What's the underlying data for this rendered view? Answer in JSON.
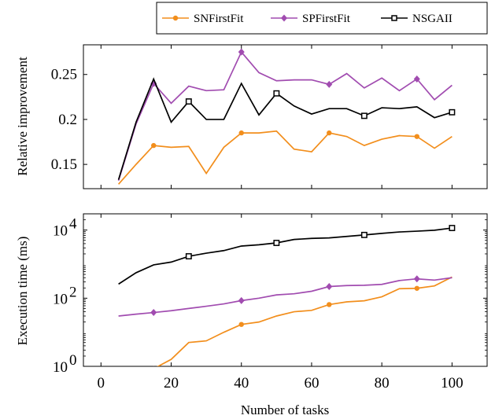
{
  "chart_data": [
    {
      "type": "line",
      "ylabel": "Relative improvement",
      "xlabel": "",
      "xlim": [
        -5,
        110
      ],
      "ylim": [
        0.123,
        0.283
      ],
      "yticks": [
        0.15,
        0.2,
        0.25
      ],
      "ytick_labels": [
        "0.15",
        "0.2",
        "0.25"
      ],
      "x": [
        5,
        10,
        15,
        20,
        25,
        30,
        35,
        40,
        45,
        50,
        55,
        60,
        65,
        70,
        75,
        80,
        85,
        90,
        95,
        100
      ],
      "series": [
        {
          "name": "SNFirstFit",
          "color": "#f28e1c",
          "marker": "circle",
          "values": [
            0.128,
            0.15,
            0.171,
            0.169,
            0.17,
            0.14,
            0.169,
            0.185,
            0.185,
            0.187,
            0.167,
            0.164,
            0.185,
            0.181,
            0.171,
            0.178,
            0.182,
            0.181,
            0.168,
            0.181
          ]
        },
        {
          "name": "SPFirstFit",
          "color": "#a14cb0",
          "marker": "diamond",
          "values": [
            0.132,
            0.195,
            0.24,
            0.218,
            0.237,
            0.232,
            0.233,
            0.275,
            0.252,
            0.243,
            0.244,
            0.244,
            0.239,
            0.251,
            0.235,
            0.246,
            0.232,
            0.245,
            0.222,
            0.238
          ]
        },
        {
          "name": "NSGAII",
          "color": "#000000",
          "marker": "square",
          "values": [
            0.133,
            0.197,
            0.245,
            0.197,
            0.22,
            0.2,
            0.2,
            0.24,
            0.205,
            0.229,
            0.215,
            0.206,
            0.212,
            0.212,
            0.204,
            0.213,
            0.212,
            0.214,
            0.202,
            0.208
          ]
        }
      ],
      "marker_every_x": [
        15,
        40,
        65,
        90
      ],
      "nsga_marker_x": [
        25,
        50,
        75,
        100
      ],
      "grid": false
    },
    {
      "type": "line",
      "ylabel": "Execution time (ms)",
      "xlabel": "Number of tasks",
      "xscale": "linear",
      "yscale": "log",
      "xlim": [
        -5,
        110
      ],
      "ylim": [
        1,
        30000
      ],
      "xticks": [
        0,
        20,
        40,
        60,
        80,
        100
      ],
      "xtick_labels": [
        "0",
        "20",
        "40",
        "60",
        "80",
        "100"
      ],
      "yticks": [
        1,
        100,
        10000
      ],
      "ytick_base": "10",
      "ytick_exponents": [
        "0",
        "2",
        "4"
      ],
      "x": [
        5,
        10,
        15,
        20,
        25,
        30,
        35,
        40,
        45,
        50,
        55,
        60,
        65,
        70,
        75,
        80,
        85,
        90,
        95,
        100
      ],
      "series": [
        {
          "name": "SNFirstFit",
          "color": "#f28e1c",
          "marker": "circle",
          "values": [
            null,
            null,
            0.85,
            1.6,
            5.0,
            5.6,
            10,
            17,
            20,
            30,
            40,
            44,
            65,
            78,
            84,
            110,
            190,
            195,
            230,
            420
          ]
        },
        {
          "name": "SPFirstFit",
          "color": "#a14cb0",
          "marker": "diamond",
          "values": [
            30,
            34,
            38,
            43,
            50,
            58,
            68,
            85,
            100,
            125,
            135,
            160,
            220,
            235,
            240,
            255,
            330,
            370,
            340,
            400
          ]
        },
        {
          "name": "NSGAII",
          "color": "#000000",
          "marker": "square",
          "values": [
            260,
            560,
            950,
            1150,
            1700,
            2100,
            2500,
            3400,
            3700,
            4200,
            5300,
            5700,
            5900,
            6500,
            7200,
            8000,
            8800,
            9300,
            9900,
            11500
          ]
        }
      ],
      "grid": false
    }
  ],
  "legend": {
    "placement": "top-right",
    "entries": [
      "SNFirstFit",
      "SPFirstFit",
      "NSGAII"
    ]
  }
}
